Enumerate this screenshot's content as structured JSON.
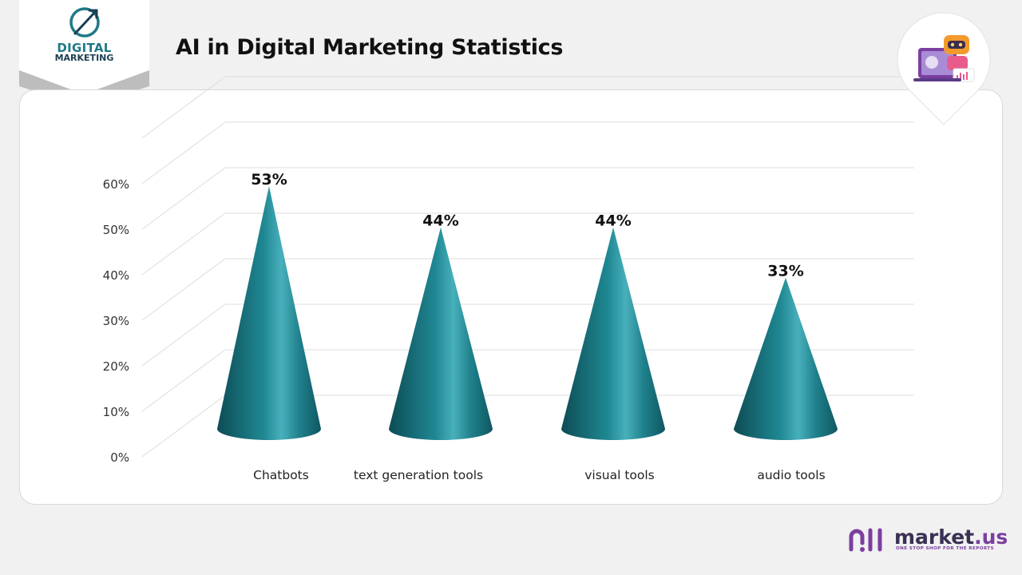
{
  "brand": {
    "line1": "DIGITAL",
    "line2": "MARKETING"
  },
  "title": "AI in Digital Marketing Statistics",
  "colors": {
    "accent": "#1d7a86",
    "cone_dark": "#0f4f58",
    "cone_light": "#4fb7c2",
    "logo": "#7b3fa0"
  },
  "chart_data": {
    "type": "bar",
    "categories": [
      "Chatbots",
      "text generation tools",
      "visual tools",
      "audio tools"
    ],
    "values": [
      53,
      44,
      44,
      33
    ],
    "value_labels": [
      "53%",
      "44%",
      "44%",
      "33%"
    ],
    "y_ticks": [
      "0%",
      "10%",
      "20%",
      "30%",
      "40%",
      "50%",
      "60%"
    ],
    "ylim": [
      0,
      70
    ],
    "grid": true,
    "title": "",
    "xlabel": "",
    "ylabel": ""
  },
  "footer": {
    "logo_word": "market",
    "logo_dot": ".us",
    "tagline": "ONE STOP SHOP FOR THE REPORTS"
  }
}
